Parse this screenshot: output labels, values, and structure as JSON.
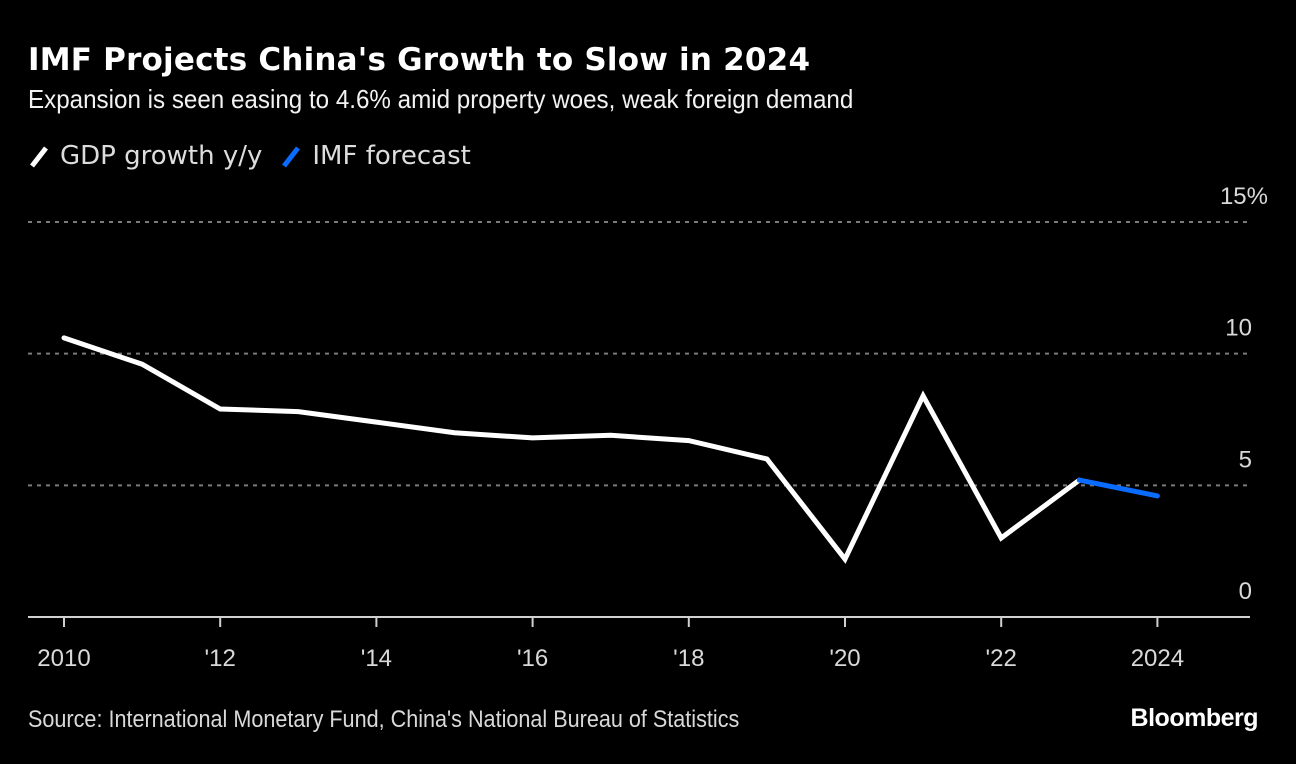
{
  "header": {
    "title": "IMF Projects China's Growth to Slow in 2024",
    "subtitle": "Expansion is seen easing to 4.6% amid property woes, weak foreign demand"
  },
  "legend": [
    {
      "label": "GDP growth y/y",
      "color": "#ffffff"
    },
    {
      "label": "IMF forecast",
      "color": "#0a6cff"
    }
  ],
  "footer": {
    "source": "Source: International Monetary Fund, China's National Bureau of Statistics",
    "brand": "Bloomberg"
  },
  "chart_data": {
    "type": "line",
    "title": "IMF Projects China's Growth to Slow in 2024",
    "subtitle": "Expansion is seen easing to 4.6% amid property woes, weak foreign demand",
    "xlabel": "",
    "ylabel": "",
    "x": [
      2010,
      2011,
      2012,
      2013,
      2014,
      2015,
      2016,
      2017,
      2018,
      2019,
      2020,
      2021,
      2022,
      2023,
      2024
    ],
    "xlim": [
      2009.55,
      2025.2
    ],
    "ylim": [
      0,
      15
    ],
    "y_ticks": [
      {
        "value": 15,
        "label": "15%"
      },
      {
        "value": 10,
        "label": "10"
      },
      {
        "value": 5,
        "label": "5"
      },
      {
        "value": 0,
        "label": "0"
      }
    ],
    "x_ticks": [
      {
        "value": 2010,
        "label": "2010"
      },
      {
        "value": 2012,
        "label": "'12"
      },
      {
        "value": 2014,
        "label": "'14"
      },
      {
        "value": 2016,
        "label": "'16"
      },
      {
        "value": 2018,
        "label": "'18"
      },
      {
        "value": 2020,
        "label": "'20"
      },
      {
        "value": 2022,
        "label": "'22"
      },
      {
        "value": 2024,
        "label": "2024"
      }
    ],
    "grid": true,
    "legend_position": "top-left",
    "series": [
      {
        "name": "GDP growth y/y",
        "color": "#ffffff",
        "x": [
          2010,
          2011,
          2012,
          2013,
          2014,
          2015,
          2016,
          2017,
          2018,
          2019,
          2020,
          2021,
          2022,
          2023
        ],
        "values": [
          10.6,
          9.6,
          7.9,
          7.8,
          7.4,
          7.0,
          6.8,
          6.9,
          6.7,
          6.0,
          2.2,
          8.4,
          3.0,
          5.2
        ]
      },
      {
        "name": "IMF forecast",
        "color": "#0a6cff",
        "x": [
          2023,
          2024
        ],
        "values": [
          5.2,
          4.6
        ]
      }
    ]
  }
}
